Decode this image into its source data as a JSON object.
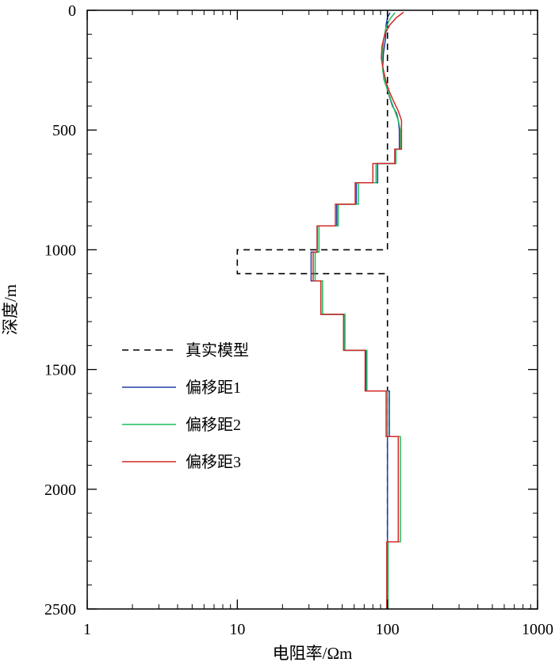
{
  "chart_data": {
    "type": "line",
    "xlabel": "电阻率/Ωm",
    "ylabel": "深度/m",
    "xscale": "log",
    "xlim": [
      1,
      1000
    ],
    "ylim": [
      0,
      2500
    ],
    "y_inverted": true,
    "grid": false,
    "legend_position": "left-middle",
    "x_ticks": [
      "1",
      "10",
      "100",
      "1000"
    ],
    "y_ticks": [
      "0",
      "500",
      "1000",
      "1500",
      "2000",
      "2500"
    ],
    "series": [
      {
        "name": "真实模型",
        "color": "#000000",
        "dash": "dashed",
        "points": [
          [
            100,
            0
          ],
          [
            100,
            1000
          ],
          [
            10,
            1000
          ],
          [
            10,
            1100
          ],
          [
            100,
            1100
          ],
          [
            100,
            2500
          ]
        ]
      },
      {
        "name": "偏移距1",
        "color": "#1f3fa8",
        "dash": "solid",
        "points": [
          [
            104,
            10
          ],
          [
            100,
            30
          ],
          [
            98,
            60
          ],
          [
            97,
            120
          ],
          [
            94,
            180
          ],
          [
            93,
            240
          ],
          [
            95,
            290
          ],
          [
            100,
            330
          ],
          [
            103,
            360
          ],
          [
            108,
            400
          ],
          [
            115,
            430
          ],
          [
            118,
            460
          ],
          [
            120,
            500
          ],
          [
            120,
            580
          ],
          [
            112,
            580
          ],
          [
            112,
            640
          ],
          [
            86,
            640
          ],
          [
            86,
            720
          ],
          [
            62,
            720
          ],
          [
            62,
            810
          ],
          [
            46,
            810
          ],
          [
            46,
            900
          ],
          [
            34,
            900
          ],
          [
            34,
            1010
          ],
          [
            31,
            1010
          ],
          [
            31,
            1130
          ],
          [
            36,
            1130
          ],
          [
            36,
            1270
          ],
          [
            52,
            1270
          ],
          [
            52,
            1420
          ],
          [
            72,
            1420
          ],
          [
            72,
            1590
          ],
          [
            103,
            1590
          ],
          [
            103,
            1780
          ],
          [
            100,
            1780
          ],
          [
            100,
            2220
          ],
          [
            100,
            2500
          ]
        ]
      },
      {
        "name": "偏移距2",
        "color": "#1fbe5a",
        "dash": "solid",
        "points": [
          [
            112,
            10
          ],
          [
            103,
            40
          ],
          [
            97,
            80
          ],
          [
            94,
            130
          ],
          [
            92,
            190
          ],
          [
            93,
            250
          ],
          [
            96,
            300
          ],
          [
            101,
            340
          ],
          [
            106,
            380
          ],
          [
            112,
            420
          ],
          [
            118,
            460
          ],
          [
            122,
            500
          ],
          [
            122,
            580
          ],
          [
            114,
            580
          ],
          [
            114,
            640
          ],
          [
            84,
            640
          ],
          [
            84,
            720
          ],
          [
            64,
            720
          ],
          [
            64,
            810
          ],
          [
            47,
            810
          ],
          [
            47,
            900
          ],
          [
            35,
            900
          ],
          [
            35,
            1010
          ],
          [
            33,
            1010
          ],
          [
            33,
            1130
          ],
          [
            37,
            1130
          ],
          [
            37,
            1270
          ],
          [
            52,
            1270
          ],
          [
            52,
            1420
          ],
          [
            73,
            1420
          ],
          [
            73,
            1590
          ],
          [
            100,
            1590
          ],
          [
            100,
            1780
          ],
          [
            122,
            1780
          ],
          [
            122,
            2220
          ],
          [
            101,
            2220
          ],
          [
            101,
            2500
          ]
        ]
      },
      {
        "name": "偏移距3",
        "color": "#d42a2a",
        "dash": "solid",
        "points": [
          [
            128,
            8
          ],
          [
            115,
            30
          ],
          [
            104,
            60
          ],
          [
            96,
            100
          ],
          [
            92,
            150
          ],
          [
            91,
            200
          ],
          [
            94,
            250
          ],
          [
            98,
            300
          ],
          [
            103,
            340
          ],
          [
            110,
            380
          ],
          [
            118,
            420
          ],
          [
            124,
            460
          ],
          [
            124,
            580
          ],
          [
            112,
            580
          ],
          [
            112,
            640
          ],
          [
            80,
            640
          ],
          [
            80,
            720
          ],
          [
            61,
            720
          ],
          [
            61,
            810
          ],
          [
            45,
            810
          ],
          [
            45,
            900
          ],
          [
            34,
            900
          ],
          [
            34,
            1010
          ],
          [
            32,
            1010
          ],
          [
            32,
            1130
          ],
          [
            36,
            1130
          ],
          [
            36,
            1270
          ],
          [
            51,
            1270
          ],
          [
            51,
            1420
          ],
          [
            71,
            1420
          ],
          [
            71,
            1590
          ],
          [
            98,
            1590
          ],
          [
            98,
            1780
          ],
          [
            118,
            1780
          ],
          [
            118,
            2220
          ],
          [
            99,
            2220
          ],
          [
            99,
            2500
          ]
        ]
      }
    ]
  }
}
